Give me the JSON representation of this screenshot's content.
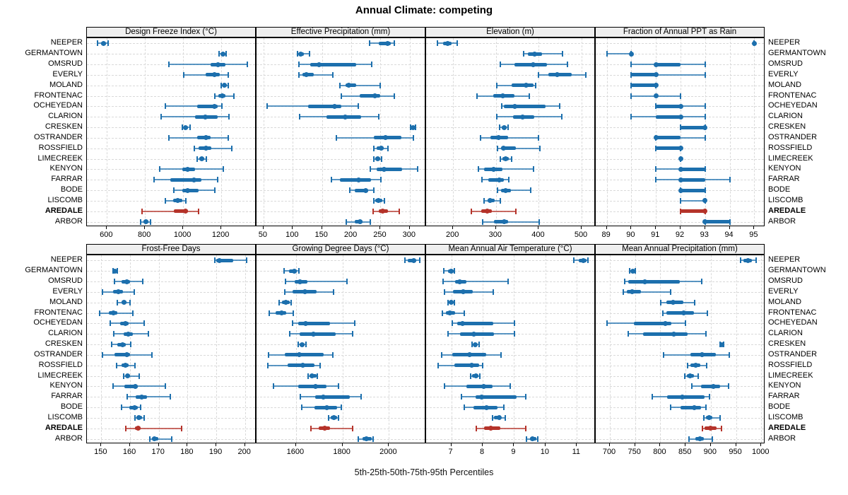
{
  "title": "Annual Climate: competing",
  "caption": "5th-25th-50th-75th-95th Percentiles",
  "colors": {
    "series": "#1c6fad",
    "highlight": "#b5332a",
    "grid": "#d9d9d9",
    "strip_bg": "#efefef",
    "border": "#000000"
  },
  "chart_data": {
    "type": "dot-whisker percentile trellis (5th-25th-50th-75th-95th)",
    "legend_position": "none",
    "grid": "dashed",
    "categories": [
      "NEEPER",
      "GERMANTOWN",
      "OMSRUD",
      "EVERLY",
      "MOLAND",
      "FRONTENAC",
      "OCHEYEDAN",
      "CLARION",
      "CRESKEN",
      "OSTRANDER",
      "ROSSFIELD",
      "LIMECREEK",
      "KENYON",
      "FARRAR",
      "BODE",
      "LISCOMB",
      "AREDALE",
      "ARBOR"
    ],
    "highlight_category": "AREDALE",
    "panels": [
      {
        "title": "Design Freeze Index (°C)",
        "ticks": [
          600,
          800,
          1000,
          1200
        ],
        "xlim": [
          495,
          1385
        ],
        "values": [
          [
            550,
            569,
            583,
            595,
            608
          ],
          [
            1190,
            1200,
            1207,
            1220,
            1227
          ],
          [
            926,
            1143,
            1183,
            1223,
            1338
          ],
          [
            1004,
            1119,
            1165,
            1193,
            1238
          ],
          [
            1201,
            1207,
            1218,
            1228,
            1235
          ],
          [
            1168,
            1186,
            1205,
            1223,
            1267
          ],
          [
            906,
            1075,
            1165,
            1180,
            1202
          ],
          [
            886,
            1063,
            1116,
            1180,
            1242
          ],
          [
            995,
            1004,
            1014,
            1026,
            1035
          ],
          [
            925,
            1075,
            1119,
            1143,
            1238
          ],
          [
            1057,
            1081,
            1119,
            1149,
            1254
          ],
          [
            1075,
            1084,
            1098,
            1112,
            1122
          ],
          [
            878,
            995,
            1022,
            1063,
            1211
          ],
          [
            849,
            933,
            1057,
            1094,
            1180
          ],
          [
            952,
            995,
            1022,
            1081,
            1165
          ],
          [
            906,
            946,
            973,
            995,
            1014
          ],
          [
            785,
            952,
            1014,
            1026,
            1081
          ],
          [
            775,
            791,
            804,
            816,
            828
          ]
        ]
      },
      {
        "title": "Effective Precipitation (mm)",
        "ticks": [
          50,
          100,
          150,
          200,
          250,
          300
        ],
        "xlim": [
          38,
          328
        ],
        "values": [
          [
            231,
            247,
            262,
            268,
            274
          ],
          [
            108,
            111,
            114,
            119,
            129
          ],
          [
            111,
            130,
            145,
            208,
            235
          ],
          [
            110,
            116,
            123,
            136,
            168
          ],
          [
            181,
            190,
            196,
            208,
            250
          ],
          [
            183,
            214,
            240,
            249,
            274
          ],
          [
            56,
            126,
            171,
            183,
            212
          ],
          [
            112,
            158,
            190,
            217,
            247
          ],
          [
            302,
            304,
            306,
            308,
            310
          ],
          [
            174,
            239,
            259,
            286,
            306
          ],
          [
            239,
            243,
            251,
            255,
            263
          ],
          [
            238,
            241,
            245,
            249,
            252
          ],
          [
            233,
            243,
            256,
            287,
            313
          ],
          [
            166,
            180,
            212,
            234,
            251
          ],
          [
            198,
            206,
            225,
            229,
            238
          ],
          [
            238,
            241,
            247,
            253,
            257
          ],
          [
            237,
            247,
            254,
            263,
            282
          ],
          [
            191,
            206,
            215,
            219,
            233
          ]
        ]
      },
      {
        "title": "Elevation (m)",
        "ticks": [
          200,
          300,
          400,
          500
        ],
        "xlim": [
          137,
          533
        ],
        "values": [
          [
            164,
            177,
            187,
            197,
            209
          ],
          [
            365,
            375,
            390,
            407,
            455
          ],
          [
            310,
            344,
            387,
            419,
            467
          ],
          [
            400,
            422,
            443,
            477,
            510
          ],
          [
            302,
            337,
            371,
            388,
            392
          ],
          [
            256,
            293,
            316,
            344,
            378
          ],
          [
            314,
            318,
            344,
            416,
            449
          ],
          [
            302,
            340,
            363,
            389,
            454
          ],
          [
            309,
            313,
            319,
            325,
            329
          ],
          [
            264,
            287,
            306,
            329,
            400
          ],
          [
            304,
            312,
            318,
            347,
            402
          ],
          [
            311,
            315,
            322,
            330,
            337
          ],
          [
            259,
            272,
            294,
            315,
            388
          ],
          [
            268,
            282,
            308,
            319,
            330
          ],
          [
            304,
            312,
            322,
            335,
            382
          ],
          [
            273,
            281,
            287,
            297,
            311
          ],
          [
            242,
            265,
            279,
            290,
            346
          ],
          [
            269,
            296,
            319,
            329,
            401
          ]
        ]
      },
      {
        "title": "Fraction of Annual PPT as Rain",
        "ticks": [
          89,
          90,
          91,
          92,
          93,
          94,
          95
        ],
        "xlim": [
          88.55,
          95.45
        ],
        "values": [
          [
            95,
            95,
            95,
            95,
            95
          ],
          [
            89,
            90,
            90,
            90,
            90
          ],
          [
            90,
            91,
            91,
            92,
            93
          ],
          [
            90,
            90,
            91,
            91,
            93
          ],
          [
            90,
            90,
            91,
            91,
            91
          ],
          [
            90,
            91,
            91,
            91,
            92
          ],
          [
            91,
            91,
            92,
            92,
            93
          ],
          [
            90,
            91,
            92,
            92,
            93
          ],
          [
            92,
            92,
            93,
            93,
            93
          ],
          [
            91,
            91,
            91,
            92,
            93
          ],
          [
            91,
            91,
            92,
            92,
            92
          ],
          [
            92,
            92,
            92,
            92,
            92
          ],
          [
            91,
            92,
            92,
            93,
            93
          ],
          [
            91,
            92,
            92,
            93,
            94
          ],
          [
            92,
            92,
            92,
            93,
            93
          ],
          [
            92,
            93,
            93,
            93,
            93
          ],
          [
            92,
            92,
            93,
            93,
            93
          ],
          [
            93,
            93,
            93,
            94,
            94
          ]
        ]
      },
      {
        "title": "Frost-Free Days",
        "ticks": [
          150,
          160,
          170,
          180,
          190,
          200
        ],
        "xlim": [
          145,
          204
        ],
        "values": [
          [
            189.5,
            190,
            191,
            196,
            200.5
          ],
          [
            154,
            154.3,
            154.7,
            155.2,
            155.6
          ],
          [
            154.5,
            157,
            159,
            160,
            164.5
          ],
          [
            150.5,
            154,
            156,
            157.5,
            161.5
          ],
          [
            155.5,
            157,
            158,
            158.7,
            160
          ],
          [
            149.5,
            152.5,
            154.3,
            155.5,
            161
          ],
          [
            153,
            156.5,
            158.5,
            159.5,
            165
          ],
          [
            154.3,
            157.7,
            159.5,
            161,
            166.3
          ],
          [
            153.7,
            155.5,
            157.3,
            158.5,
            160.3
          ],
          [
            150.5,
            154.5,
            159,
            160,
            167.5
          ],
          [
            155.4,
            157,
            158.4,
            159.4,
            161.8
          ],
          [
            157.7,
            158.5,
            159.2,
            160,
            163.3
          ],
          [
            154,
            158,
            161.8,
            162.6,
            172.3
          ],
          [
            159,
            162,
            164,
            166,
            174
          ],
          [
            157,
            159.8,
            161.6,
            162.6,
            163.6
          ],
          [
            161.8,
            162.2,
            163,
            164.2,
            164.9
          ],
          [
            158.5,
            161.6,
            162.8,
            163.6,
            178
          ],
          [
            167,
            167.5,
            168.5,
            169.8,
            174.6
          ]
        ]
      },
      {
        "title": "Growing Degree Days (°C)",
        "ticks": [
          1600,
          1800,
          2000
        ],
        "xlim": [
          1430,
          2160
        ],
        "values": [
          [
            2070,
            2082,
            2107,
            2118,
            2133
          ],
          [
            1548,
            1570,
            1592,
            1604,
            1612
          ],
          [
            1556,
            1595,
            1617,
            1650,
            1820
          ],
          [
            1553,
            1584,
            1639,
            1688,
            1763
          ],
          [
            1527,
            1541,
            1556,
            1572,
            1579
          ],
          [
            1484,
            1512,
            1537,
            1558,
            1587
          ],
          [
            1584,
            1608,
            1641,
            1745,
            1853
          ],
          [
            1574,
            1615,
            1674,
            1771,
            1843
          ],
          [
            1610,
            1616,
            1626,
            1636,
            1643
          ],
          [
            1481,
            1553,
            1615,
            1719,
            1760
          ],
          [
            1478,
            1563,
            1629,
            1678,
            1703
          ],
          [
            1652,
            1657,
            1670,
            1688,
            1693
          ],
          [
            1502,
            1610,
            1683,
            1732,
            1784
          ],
          [
            1618,
            1683,
            1716,
            1833,
            1881
          ],
          [
            1626,
            1678,
            1732,
            1778,
            1795
          ],
          [
            1740,
            1748,
            1763,
            1776,
            1784
          ],
          [
            1665,
            1698,
            1724,
            1745,
            1843
          ],
          [
            1869,
            1885,
            1902,
            1926,
            1933
          ]
        ]
      },
      {
        "title": "Mean Annual Air Temperature (°C)",
        "ticks": [
          7,
          8,
          9,
          10,
          11
        ],
        "xlim": [
          6.2,
          11.6
        ],
        "values": [
          [
            10.9,
            11.05,
            11.2,
            11.3,
            11.35
          ],
          [
            6.77,
            6.89,
            6.99,
            7.08,
            7.11
          ],
          [
            6.75,
            7.13,
            7.26,
            7.49,
            8.82
          ],
          [
            6.79,
            7.05,
            7.37,
            7.69,
            8.33
          ],
          [
            6.89,
            6.92,
            6.99,
            7.07,
            7.11
          ],
          [
            6.71,
            6.83,
            6.96,
            7.13,
            7.41
          ],
          [
            7.04,
            7.19,
            7.35,
            8.33,
            9.01
          ],
          [
            6.9,
            7.28,
            7.71,
            8.37,
            9.02
          ],
          [
            7.67,
            7.7,
            7.77,
            7.83,
            7.88
          ],
          [
            6.7,
            7.04,
            7.58,
            8.11,
            8.59
          ],
          [
            6.59,
            7.09,
            7.64,
            7.88,
            7.99
          ],
          [
            7.62,
            7.67,
            7.79,
            7.87,
            7.92
          ],
          [
            6.78,
            7.49,
            8.03,
            8.32,
            8.88
          ],
          [
            7.32,
            7.77,
            7.97,
            9.07,
            9.37
          ],
          [
            7.41,
            7.71,
            8.12,
            8.48,
            8.67
          ],
          [
            8.32,
            8.37,
            8.52,
            8.59,
            8.72
          ],
          [
            7.79,
            8.05,
            8.26,
            8.56,
            9.38
          ],
          [
            9.4,
            9.5,
            9.59,
            9.7,
            9.76
          ]
        ]
      },
      {
        "title": "Mean Annual Precipitation (mm)",
        "ticks": [
          700,
          750,
          800,
          850,
          900,
          950,
          1000
        ],
        "xlim": [
          672,
          1008
        ],
        "values": [
          [
            959,
            965,
            974,
            981,
            990
          ],
          [
            739,
            742,
            745,
            749,
            751
          ],
          [
            729,
            737,
            769,
            839,
            882
          ],
          [
            727,
            733,
            744,
            762,
            820
          ],
          [
            801,
            812,
            825,
            846,
            868
          ],
          [
            805,
            812,
            846,
            867,
            893
          ],
          [
            694,
            747,
            810,
            822,
            850
          ],
          [
            736,
            766,
            826,
            854,
            891
          ],
          [
            919,
            921,
            922,
            924,
            926
          ],
          [
            807,
            859,
            882,
            910,
            936
          ],
          [
            854,
            860,
            870,
            879,
            892
          ],
          [
            849,
            853,
            859,
            866,
            875
          ],
          [
            863,
            881,
            905,
            918,
            935
          ],
          [
            784,
            813,
            843,
            888,
            898
          ],
          [
            821,
            840,
            867,
            881,
            891
          ],
          [
            886,
            890,
            897,
            903,
            919
          ],
          [
            884,
            888,
            900,
            911,
            921
          ],
          [
            857,
            869,
            879,
            886,
            903
          ]
        ]
      }
    ]
  }
}
